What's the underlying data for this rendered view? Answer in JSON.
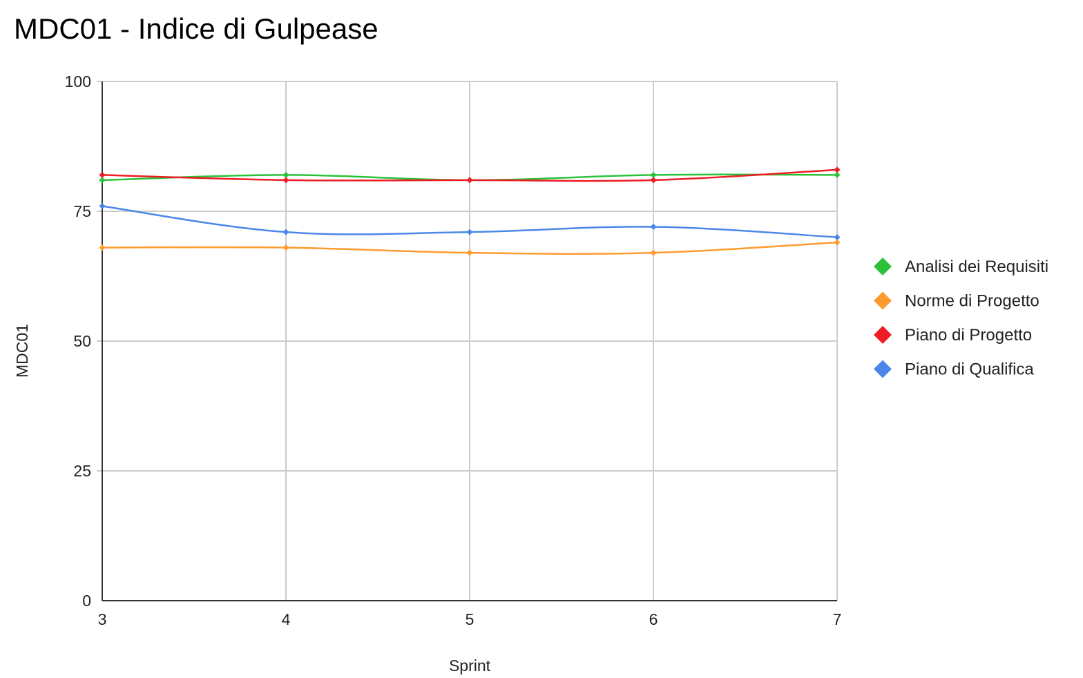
{
  "chart_data": {
    "type": "line",
    "title": "MDC01 - Indice di Gulpease",
    "xlabel": "Sprint",
    "ylabel": "MDC01",
    "x": [
      3,
      4,
      5,
      6,
      7
    ],
    "x_ticks": [
      "3",
      "4",
      "5",
      "6",
      "7"
    ],
    "xlim": [
      3,
      7
    ],
    "ylim": [
      0,
      100
    ],
    "y_ticks": [
      "0",
      "25",
      "50",
      "75",
      "100"
    ],
    "y_tick_values": [
      0,
      25,
      50,
      75,
      100
    ],
    "y_gridlines_unlabeled": [],
    "grid": true,
    "smooth": true,
    "legend_position": "right",
    "series": [
      {
        "name": "Analisi dei Requisiti",
        "color": "#2bc23a",
        "values": [
          81,
          82,
          81,
          82,
          82
        ]
      },
      {
        "name": "Norme di Progetto",
        "color": "#ff9a2e",
        "values": [
          68,
          68,
          67,
          67,
          69
        ]
      },
      {
        "name": "Piano di Progetto",
        "color": "#ee1c24",
        "values": [
          82,
          81,
          81,
          81,
          83
        ]
      },
      {
        "name": "Piano di Qualifica",
        "color": "#4a87e8",
        "values": [
          76,
          71,
          71,
          72,
          70
        ]
      }
    ],
    "draw_order": [
      1,
      3,
      0,
      2
    ]
  }
}
